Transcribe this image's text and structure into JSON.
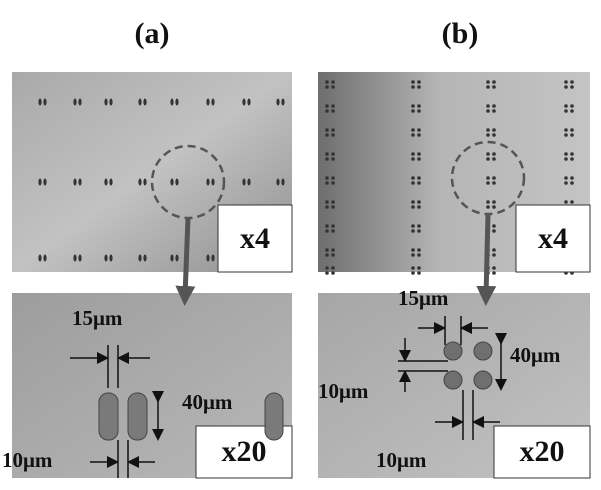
{
  "panels": [
    {
      "label": "(a)",
      "top_magnification": "x4",
      "bottom_magnification": "x20",
      "annotations": [
        "15μm",
        "40μm",
        "10μm"
      ]
    },
    {
      "label": "(b)",
      "top_magnification": "x4",
      "bottom_magnification": "x20",
      "annotations": [
        "15μm",
        "40μm",
        "10μm",
        "10μm"
      ]
    }
  ]
}
